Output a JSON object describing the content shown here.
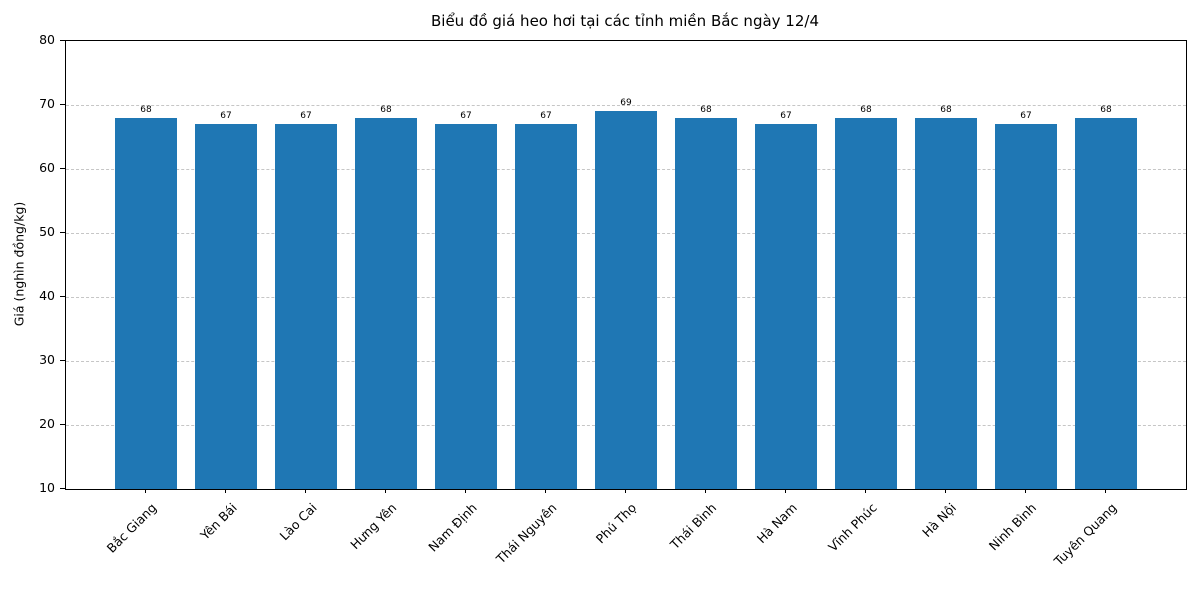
{
  "chart_data": {
    "type": "bar",
    "title": "Biểu đồ giá heo hơi tại các tỉnh miền Bắc ngày 12/4",
    "xlabel": "",
    "ylabel": "Giá (nghìn đồng/kg)",
    "categories": [
      "Bắc Giang",
      "Yên Bái",
      "Lào Cai",
      "Hưng Yên",
      "Nam Định",
      "Thái Nguyên",
      "Phú Thọ",
      "Thái Bình",
      "Hà Nam",
      "Vĩnh Phúc",
      "Hà Nội",
      "Ninh Bình",
      "Tuyên Quang"
    ],
    "values": [
      68,
      67,
      67,
      68,
      67,
      67,
      69,
      68,
      67,
      68,
      68,
      67,
      68
    ],
    "value_labels": [
      "68",
      "67",
      "67",
      "68",
      "67",
      "67",
      "69",
      "68",
      "67",
      "68",
      "68",
      "67",
      "68"
    ],
    "ylim": [
      10,
      80
    ],
    "yticks": [
      10,
      20,
      30,
      40,
      50,
      60,
      70,
      80
    ],
    "bar_color": "#1f77b4",
    "grid": true,
    "grid_style": "dashed",
    "grid_color": "#c6c6c6",
    "legend_position": "none"
  }
}
